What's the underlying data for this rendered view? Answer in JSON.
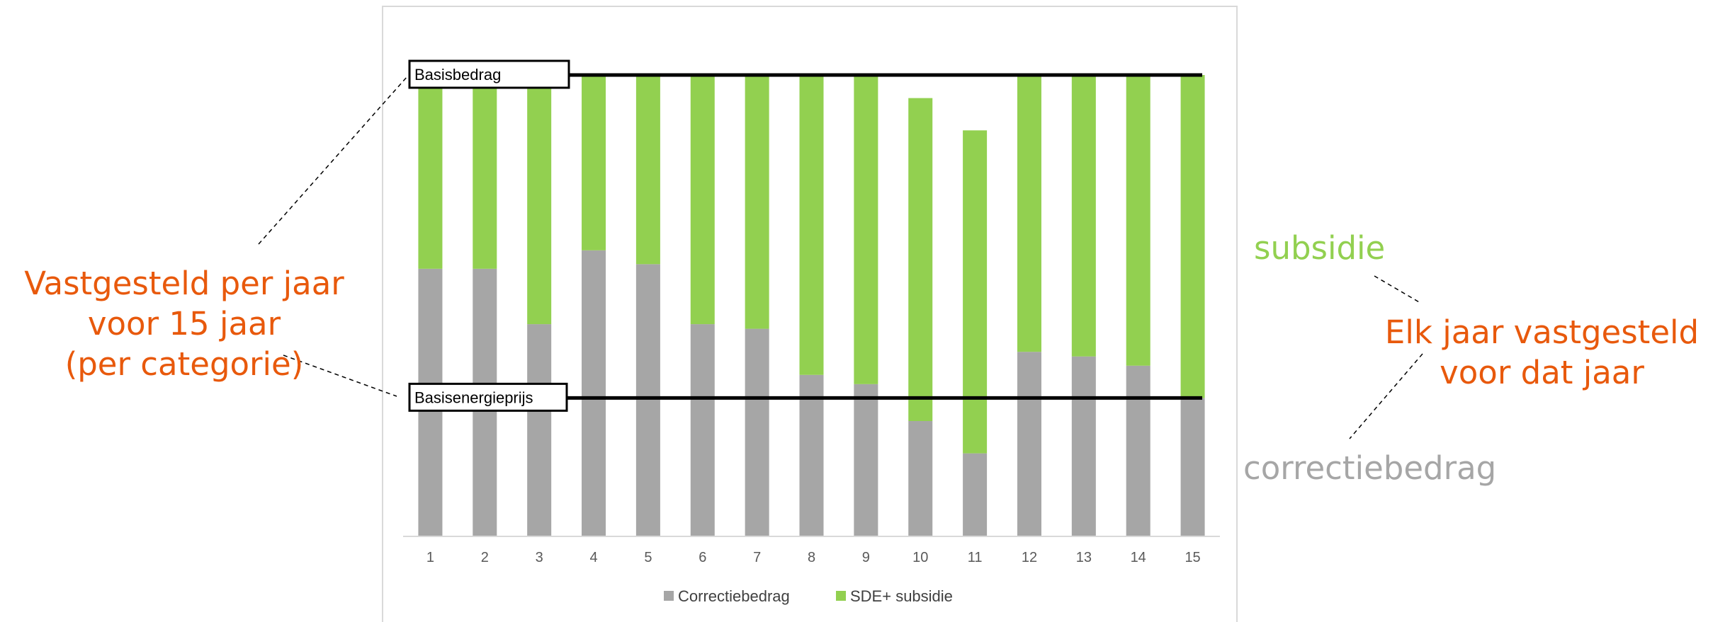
{
  "chart_data": {
    "type": "bar",
    "stacked": true,
    "categories": [
      "1",
      "2",
      "3",
      "4",
      "5",
      "6",
      "7",
      "8",
      "9",
      "10",
      "11",
      "12",
      "13",
      "14",
      "15"
    ],
    "series": [
      {
        "name": "Correctiebedrag",
        "color": "#a6a6a6",
        "values": [
          58,
          58,
          46,
          62,
          59,
          46,
          45,
          35,
          33,
          25,
          18,
          40,
          39,
          37,
          30
        ]
      },
      {
        "name": "SDE+ subsidie",
        "color": "#92d050",
        "values": [
          42,
          42,
          54,
          38,
          41,
          54,
          55,
          65,
          67,
          70,
          70,
          60,
          61,
          63,
          70
        ]
      }
    ],
    "ylim": [
      0,
      100
    ],
    "reference_lines": [
      {
        "label": "Basisbedrag",
        "value": 100
      },
      {
        "label": "Basisenergieprijs",
        "value": 30
      }
    ],
    "legend_position": "bottom",
    "grid": false
  },
  "annotations": {
    "left_lines": [
      "Vastgesteld per jaar",
      "voor 15 jaar",
      "(per categorie)"
    ],
    "subsidie": "subsidie",
    "right_lines": [
      "Elk jaar vastgesteld",
      "voor dat jaar"
    ],
    "correctie": "correctiebedrag",
    "colors": {
      "orange": "#e8590c",
      "green": "#92d050",
      "gray": "#a6a6a6"
    }
  }
}
